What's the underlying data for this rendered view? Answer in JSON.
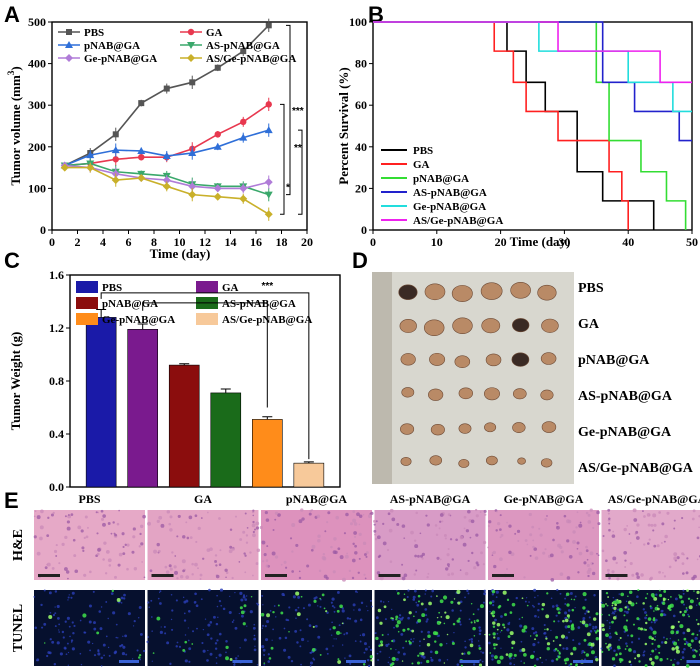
{
  "figure_labels": {
    "a": "A",
    "b": "B",
    "c": "C",
    "d": "D",
    "e": "E"
  },
  "chart_data": [
    {
      "id": "A",
      "type": "line",
      "xlabel": "Time (day)",
      "ylabel": "Tumor volume (mm",
      "ylabel_sup": "3",
      "ylabel_end": ")",
      "xlim": [
        0,
        20
      ],
      "ylim": [
        0,
        500
      ],
      "xticks": [
        "0",
        "2",
        "4",
        "6",
        "8",
        "10",
        "12",
        "14",
        "16",
        "18",
        "20"
      ],
      "yticks": [
        "0",
        "100",
        "200",
        "300",
        "400",
        "500"
      ],
      "x": [
        1,
        3,
        5,
        7,
        9,
        11,
        13,
        15,
        17
      ],
      "series": [
        {
          "name": "PBS",
          "color": "#555555",
          "marker": "square",
          "values": [
            155,
            185,
            230,
            305,
            340,
            355,
            390,
            430,
            492
          ]
        },
        {
          "name": "GA",
          "color": "#e8384f",
          "marker": "circle",
          "values": [
            155,
            160,
            170,
            175,
            175,
            195,
            230,
            260,
            302
          ]
        },
        {
          "name": "pNAB@GA",
          "color": "#2f6fd8",
          "marker": "triangle",
          "values": [
            155,
            180,
            192,
            190,
            178,
            185,
            200,
            222,
            240
          ]
        },
        {
          "name": "AS-pNAB@GA",
          "color": "#3aa86b",
          "marker": "tri-down",
          "values": [
            155,
            160,
            140,
            135,
            130,
            110,
            105,
            105,
            85
          ]
        },
        {
          "name": "Ge-pNAB@GA",
          "color": "#b07cd8",
          "marker": "diamond",
          "values": [
            155,
            150,
            135,
            125,
            120,
            105,
            100,
            100,
            115
          ]
        },
        {
          "name": "AS/Ge-pNAB@GA",
          "color": "#c9b02a",
          "marker": "diamond",
          "values": [
            150,
            150,
            120,
            125,
            105,
            85,
            80,
            75,
            38
          ]
        }
      ],
      "legend": [
        "PBS",
        "GA",
        "pNAB@GA",
        "AS-pNAB@GA",
        "Ge-pNAB@GA",
        "AS/Ge-pNAB@GA"
      ],
      "significance": [
        "***",
        "**",
        "*"
      ]
    },
    {
      "id": "B",
      "type": "line",
      "xlabel": "Time (day)",
      "ylabel": "Percent Survival (%)",
      "xlim": [
        0,
        50
      ],
      "ylim": [
        0,
        100
      ],
      "xticks": [
        "0",
        "10",
        "20",
        "30",
        "40",
        "50"
      ],
      "yticks": [
        "0",
        "20",
        "40",
        "60",
        "80",
        "100"
      ],
      "series": [
        {
          "name": "PBS",
          "color": "#000000",
          "x": [
            0,
            21,
            21,
            24,
            24,
            27,
            27,
            32,
            32,
            36,
            36,
            44,
            44
          ],
          "values": [
            100,
            100,
            86,
            86,
            71,
            71,
            57,
            57,
            28,
            28,
            14,
            14,
            0
          ]
        },
        {
          "name": "GA",
          "color": "#ff2020",
          "x": [
            0,
            19,
            19,
            22,
            22,
            24,
            24,
            29,
            29,
            37,
            37,
            39,
            39,
            40,
            40
          ],
          "values": [
            100,
            100,
            86,
            86,
            71,
            71,
            57,
            57,
            43,
            43,
            28,
            28,
            14,
            14,
            0
          ]
        },
        {
          "name": "pNAB@GA",
          "color": "#33dd33",
          "x": [
            0,
            35,
            35,
            37,
            37,
            42,
            42,
            46,
            46,
            49,
            49
          ],
          "values": [
            100,
            100,
            71,
            71,
            43,
            43,
            28,
            28,
            14,
            14,
            0
          ]
        },
        {
          "name": "AS-pNAB@GA",
          "color": "#2222cc",
          "x": [
            0,
            36,
            36,
            41,
            41,
            48,
            48,
            50
          ],
          "values": [
            100,
            100,
            71,
            71,
            57,
            57,
            43,
            43
          ]
        },
        {
          "name": "Ge-pNAB@GA",
          "color": "#22dddd",
          "x": [
            0,
            26,
            26,
            40,
            40,
            47,
            47,
            50
          ],
          "values": [
            100,
            100,
            86,
            86,
            71,
            71,
            57,
            57
          ]
        },
        {
          "name": "AS/Ge-pNAB@GA",
          "color": "#ee22ee",
          "x": [
            0,
            29,
            29,
            45,
            45,
            50
          ],
          "values": [
            100,
            100,
            86,
            86,
            71,
            71
          ]
        }
      ],
      "legend": [
        "PBS",
        "GA",
        "pNAB@GA",
        "AS-pNAB@GA",
        "Ge-pNAB@GA",
        "AS/Ge-pNAB@GA"
      ]
    },
    {
      "id": "C",
      "type": "bar",
      "ylabel": "Tumor Weight (g)",
      "ylim": [
        0,
        1.6
      ],
      "yticks": [
        "0.0",
        "0.4",
        "0.8",
        "1.2",
        "1.6"
      ],
      "categories": [
        "PBS",
        "GA",
        "pNAB@GA",
        "AS-pNAB@GA",
        "Ge-pNAB@GA",
        "AS/Ge-pNAB@GA"
      ],
      "values": [
        1.28,
        1.19,
        0.92,
        0.71,
        0.51,
        0.18
      ],
      "errors": [
        0.06,
        0.04,
        0.01,
        0.03,
        0.02,
        0.01
      ],
      "colors": [
        "#1a1aa8",
        "#7a1a8e",
        "#8b0d0d",
        "#1a6b1a",
        "#ff8c1a",
        "#f7c99a"
      ],
      "significance": "***"
    }
  ],
  "panel_d": {
    "rows": [
      "PBS",
      "GA",
      "pNAB@GA",
      "AS-pNAB@GA",
      "Ge-pNAB@GA",
      "AS/Ge-pNAB@GA"
    ]
  },
  "panel_e": {
    "columns": [
      "PBS",
      "GA",
      "pNAB@GA",
      "AS-pNAB@GA",
      "Ge-pNAB@GA",
      "AS/Ge-pNAB@GA"
    ],
    "rows": [
      "H&E",
      "TUNEL"
    ],
    "he_colors": [
      "#e6a9c7",
      "#e3a4c4",
      "#dd92bd",
      "#d89bc6",
      "#dc97c0",
      "#e2a9ca"
    ],
    "tunel_green": [
      0.03,
      0.05,
      0.12,
      0.35,
      0.45,
      0.75
    ]
  }
}
